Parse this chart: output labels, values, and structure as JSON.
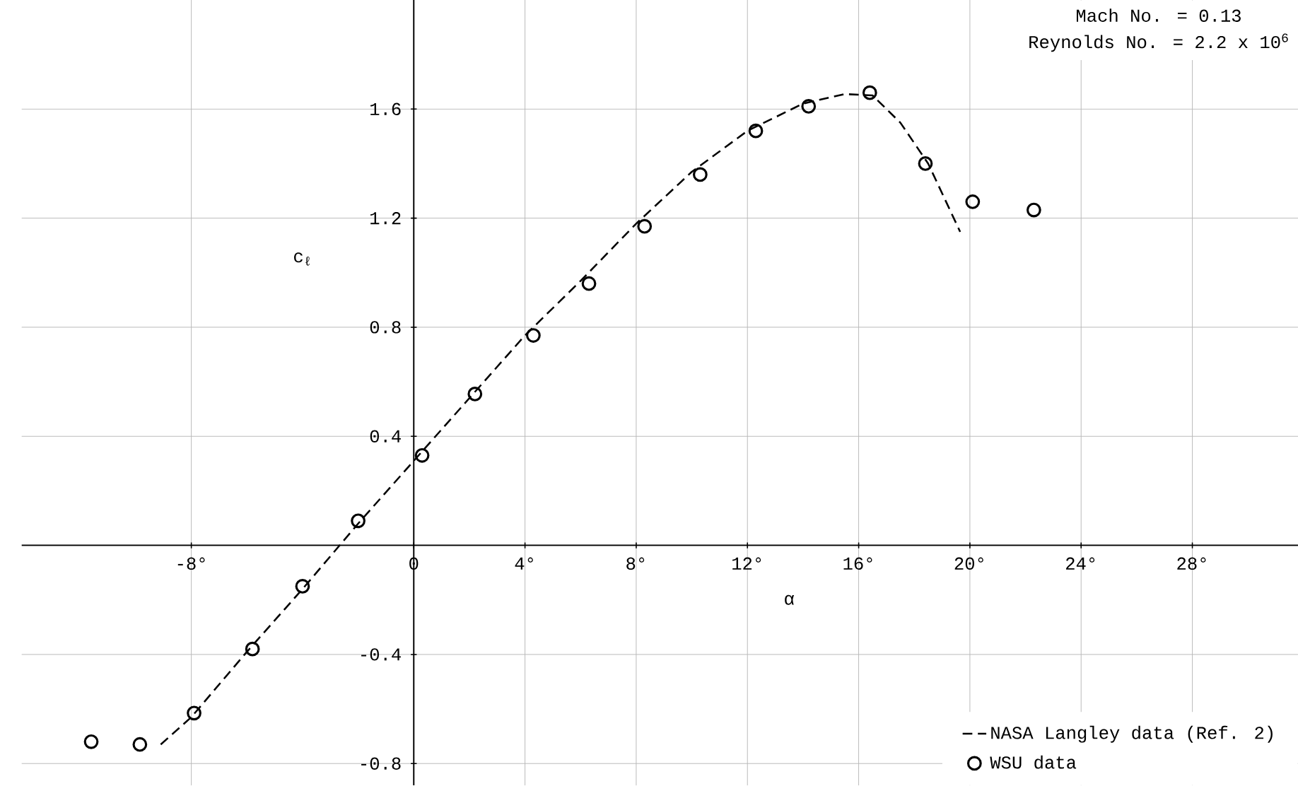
{
  "chart_data": {
    "type": "scatter",
    "xlabel": "α",
    "ylabel": "c$_{ℓ}$",
    "annotations": [
      "Mach No. = 0.13",
      "Reynolds No. = 2.2 x 10$^{6}$"
    ],
    "xlim": [
      -14.1,
      31.8
    ],
    "ylim": [
      -0.88,
      2.0
    ],
    "xticks": [
      {
        "value": -8,
        "label": "-8°"
      },
      {
        "value": 0,
        "label": "0"
      },
      {
        "value": 4,
        "label": "4°"
      },
      {
        "value": 8,
        "label": "8°"
      },
      {
        "value": 12,
        "label": "12°"
      },
      {
        "value": 16,
        "label": "16°"
      },
      {
        "value": 20,
        "label": "20°"
      },
      {
        "value": 24,
        "label": "24°"
      },
      {
        "value": 28,
        "label": "28°"
      }
    ],
    "yticks": [
      -0.8,
      -0.4,
      0.4,
      0.8,
      1.2,
      1.6
    ],
    "grid": true,
    "legend": "bottom right",
    "series": [
      {
        "name": "NASA Langley data (Ref. 2)",
        "type": "line",
        "line_style": "dashed",
        "marker": "none",
        "color": "#000000",
        "x": [
          -9.1,
          -8,
          -6,
          -4,
          -2,
          0,
          2,
          4,
          6,
          8,
          10,
          12,
          14,
          15.5,
          16.5,
          17.5,
          18.5,
          19.65
        ],
        "values": [
          -0.73,
          -0.63,
          -0.39,
          -0.16,
          0.08,
          0.31,
          0.54,
          0.77,
          0.97,
          1.18,
          1.37,
          1.52,
          1.62,
          1.655,
          1.65,
          1.55,
          1.4,
          1.15
        ]
      },
      {
        "name": "WSU data",
        "marker": "circle",
        "color": "#000000",
        "x": [
          -11.6,
          -9.85,
          -7.9,
          -5.8,
          -4.0,
          -2.0,
          0.3,
          2.2,
          4.3,
          6.3,
          8.3,
          10.3,
          12.3,
          14.2,
          16.4,
          18.4,
          20.1,
          22.3
        ],
        "values": [
          -0.72,
          -0.73,
          -0.615,
          -0.38,
          -0.15,
          0.09,
          0.33,
          0.555,
          0.77,
          0.96,
          1.17,
          1.36,
          1.52,
          1.61,
          1.66,
          1.4,
          1.26,
          1.23
        ]
      }
    ]
  }
}
